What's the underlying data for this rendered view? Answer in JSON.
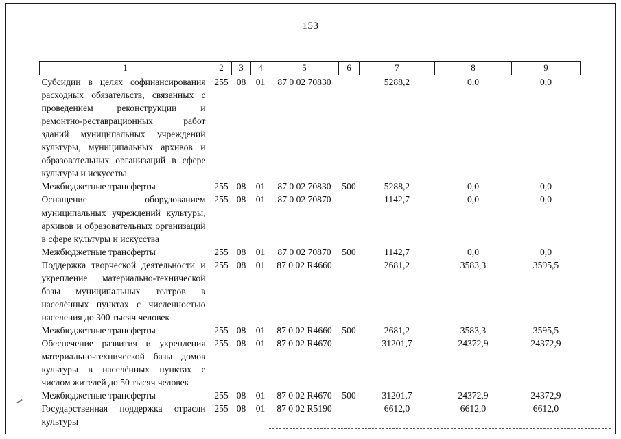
{
  "page": {
    "number": "153"
  },
  "table": {
    "header": [
      "1",
      "2",
      "3",
      "4",
      "5",
      "6",
      "7",
      "8",
      "9"
    ],
    "rows": [
      {
        "cells": [
          "Субсидии в целях софинансирования расходных обязательств, связанных с проведением реконструкции и ремонтно-реставрационных работ зданий муниципальных учреждений культуры, муниципальных архивов и образовательных организаций в сфере культуры и искусства",
          "255",
          "08",
          "01",
          "87 0 02 70830",
          "",
          "5288,2",
          "0,0",
          "0,0"
        ]
      },
      {
        "cells": [
          "Межбюджетные трансферты",
          "255",
          "08",
          "01",
          "87 0 02 70830",
          "500",
          "5288,2",
          "0,0",
          "0,0"
        ]
      },
      {
        "cells": [
          "Оснащение оборудованием муниципальных учреждений культуры, архивов и образовательных организаций в сфере культуры и искусства",
          "255",
          "08",
          "01",
          "87 0 02 70870",
          "",
          "1142,7",
          "0,0",
          "0,0"
        ]
      },
      {
        "cells": [
          "Межбюджетные трансферты",
          "255",
          "08",
          "01",
          "87 0 02 70870",
          "500",
          "1142,7",
          "0,0",
          "0,0"
        ]
      },
      {
        "cells": [
          "Поддержка творческой деятельности и укрепление материально-технической базы муниципальных театров в населённых пунктах с численностью населения до 300 тысяч человек",
          "255",
          "08",
          "01",
          "87 0 02 R4660",
          "",
          "2681,2",
          "3583,3",
          "3595,5"
        ]
      },
      {
        "cells": [
          "Межбюджетные трансферты",
          "255",
          "08",
          "01",
          "87 0 02 R4660",
          "500",
          "2681,2",
          "3583,3",
          "3595,5"
        ]
      },
      {
        "cells": [
          "Обеспечение развития и укрепления материально-технической базы домов культуры в населённых пунктах с числом жителей до 50 тысяч человек",
          "255",
          "08",
          "01",
          "87 0 02 R4670",
          "",
          "31201,7",
          "24372,9",
          "24372,9"
        ]
      },
      {
        "cells": [
          "Межбюджетные трансферты",
          "255",
          "08",
          "01",
          "87 0 02 R4670",
          "500",
          "31201,7",
          "24372,9",
          "24372,9"
        ]
      },
      {
        "cells": [
          "Государственная поддержка отрасли культуры",
          "255",
          "08",
          "01",
          "87 0 02 R5190",
          "",
          "6612,0",
          "6612,0",
          "6612,0"
        ]
      }
    ]
  }
}
